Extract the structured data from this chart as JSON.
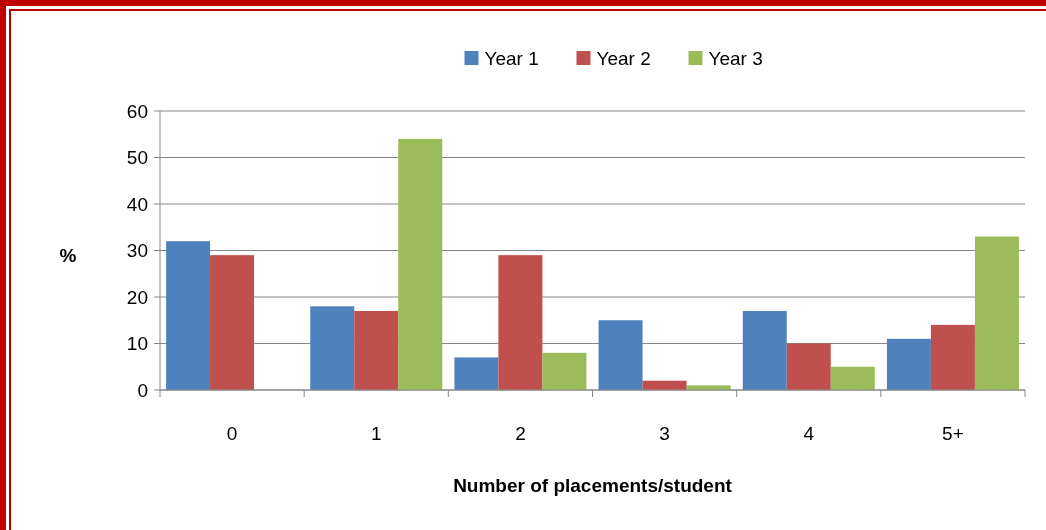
{
  "chart_data": {
    "type": "bar",
    "xlabel": "Number of placements/student",
    "ylabel": "%",
    "categories": [
      "0",
      "1",
      "2",
      "3",
      "4",
      "5+"
    ],
    "series": [
      {
        "name": "Year 1",
        "color": "#4f81bd",
        "values": [
          32,
          18,
          7,
          15,
          17,
          11
        ]
      },
      {
        "name": "Year 2",
        "color": "#c0504d",
        "values": [
          29,
          17,
          29,
          2,
          10,
          14
        ]
      },
      {
        "name": "Year 3",
        "color": "#9bbb59",
        "values": [
          0,
          54,
          8,
          1,
          5,
          33
        ]
      }
    ],
    "ylim": [
      0,
      60
    ],
    "yticks": [
      0,
      10,
      20,
      30,
      40,
      50,
      60
    ],
    "grid": "y",
    "legend": "top"
  }
}
